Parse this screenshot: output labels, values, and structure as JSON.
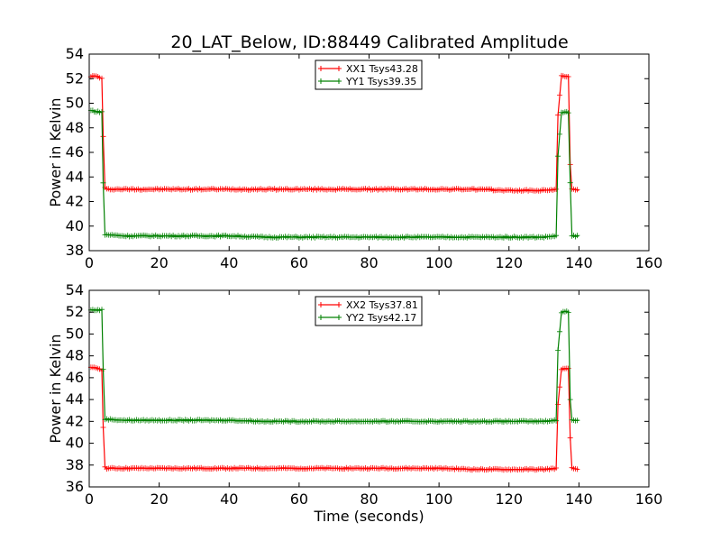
{
  "title": "20_LAT_Below, ID:88449 Calibrated Amplitude",
  "chart_data": [
    {
      "type": "line",
      "title": "20_LAT_Below, ID:88449 Calibrated Amplitude",
      "xlabel": "",
      "ylabel": "Power in Kelvin",
      "xlim": [
        0,
        160
      ],
      "ylim": [
        38,
        54
      ],
      "xticks": [
        0,
        20,
        40,
        60,
        80,
        100,
        120,
        140,
        160
      ],
      "yticks": [
        38,
        40,
        42,
        44,
        46,
        48,
        50,
        52,
        54
      ],
      "legend_position": "top-center",
      "series": [
        {
          "name": "XX1 Tsys43.28",
          "color": "#ff0000",
          "x": [
            0.5,
            1,
            2,
            3,
            3.6,
            4,
            4.5,
            5,
            10,
            20,
            30,
            40,
            50,
            60,
            70,
            80,
            90,
            100,
            110,
            120,
            130,
            133.5,
            134,
            135,
            136,
            137,
            137.5,
            138,
            140
          ],
          "y": [
            52.2,
            52.2,
            52.2,
            52.1,
            52.0,
            47.3,
            43.1,
            43.0,
            43.0,
            43.0,
            43.0,
            43.0,
            43.0,
            43.0,
            43.0,
            43.0,
            43.0,
            43.0,
            43.0,
            42.9,
            42.9,
            43.0,
            49.0,
            52.2,
            52.2,
            52.2,
            45.0,
            43.0,
            42.9
          ]
        },
        {
          "name": "YY1 Tsys39.35",
          "color": "#008000",
          "x": [
            0.5,
            1,
            2,
            3,
            3.6,
            4,
            4.5,
            5,
            10,
            20,
            30,
            40,
            50,
            60,
            70,
            80,
            90,
            100,
            110,
            120,
            130,
            133.5,
            134,
            135,
            136,
            137,
            137.5,
            138,
            140
          ],
          "y": [
            49.4,
            49.4,
            49.3,
            49.3,
            49.3,
            43.5,
            39.3,
            39.3,
            39.2,
            39.2,
            39.2,
            39.2,
            39.1,
            39.1,
            39.1,
            39.1,
            39.1,
            39.1,
            39.1,
            39.1,
            39.1,
            39.2,
            45.7,
            49.2,
            49.3,
            49.2,
            43.5,
            39.2,
            39.2
          ]
        }
      ]
    },
    {
      "type": "line",
      "title": "",
      "xlabel": "Time (seconds)",
      "ylabel": "Power in Kelvin",
      "xlim": [
        0,
        160
      ],
      "ylim": [
        36,
        54
      ],
      "xticks": [
        0,
        20,
        40,
        60,
        80,
        100,
        120,
        140,
        160
      ],
      "yticks": [
        36,
        38,
        40,
        42,
        44,
        46,
        48,
        50,
        52,
        54
      ],
      "legend_position": "top-center",
      "series": [
        {
          "name": "XX2 Tsys37.81",
          "color": "#ff0000",
          "x": [
            0.5,
            1,
            2,
            3,
            3.6,
            4,
            4.5,
            5,
            10,
            20,
            30,
            40,
            50,
            60,
            70,
            80,
            90,
            100,
            110,
            120,
            130,
            133.5,
            134,
            135,
            136,
            137,
            137.5,
            138,
            140
          ],
          "y": [
            46.9,
            46.9,
            46.9,
            46.8,
            46.7,
            41.5,
            37.8,
            37.7,
            37.7,
            37.7,
            37.7,
            37.7,
            37.7,
            37.7,
            37.7,
            37.7,
            37.7,
            37.7,
            37.6,
            37.6,
            37.6,
            37.7,
            43.5,
            46.8,
            46.8,
            46.8,
            40.5,
            37.7,
            37.6
          ]
        },
        {
          "name": "YY2 Tsys42.17",
          "color": "#008000",
          "x": [
            0.5,
            1,
            2,
            3,
            3.6,
            4,
            4.5,
            5,
            10,
            20,
            30,
            40,
            50,
            60,
            70,
            80,
            90,
            100,
            110,
            120,
            130,
            133.5,
            134,
            135,
            136,
            137,
            137.5,
            138,
            140
          ],
          "y": [
            52.2,
            52.2,
            52.2,
            52.2,
            52.2,
            46.8,
            42.2,
            42.2,
            42.1,
            42.1,
            42.1,
            42.1,
            42.0,
            42.0,
            42.0,
            42.0,
            42.0,
            42.0,
            42.0,
            42.0,
            42.0,
            42.1,
            48.5,
            52.0,
            52.1,
            52.0,
            44.0,
            42.1,
            42.1
          ]
        }
      ]
    }
  ]
}
